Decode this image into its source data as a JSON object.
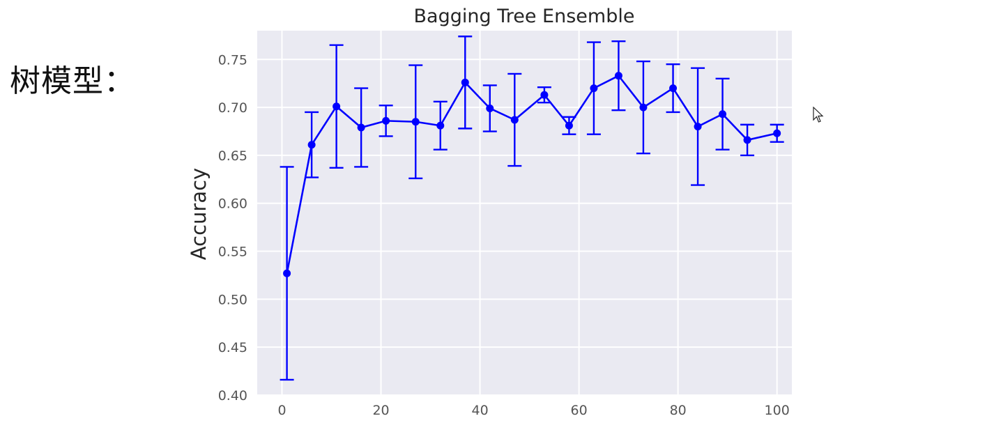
{
  "slide": {
    "heading": "树模型："
  },
  "chart_data": {
    "type": "line",
    "title": "Bagging Tree Ensemble",
    "xlabel": "",
    "ylabel": "Accuracy",
    "xlim": [
      -5,
      103
    ],
    "ylim": [
      0.4,
      0.78
    ],
    "xticks": [
      0,
      20,
      40,
      60,
      80,
      100
    ],
    "yticks": [
      0.4,
      0.45,
      0.5,
      0.55,
      0.6,
      0.65,
      0.7,
      0.75
    ],
    "xtick_labels": [
      "0",
      "20",
      "40",
      "60",
      "80",
      "100"
    ],
    "ytick_labels": [
      "0.40",
      "0.45",
      "0.50",
      "0.55",
      "0.60",
      "0.65",
      "0.70",
      "0.75"
    ],
    "grid": true,
    "colors": {
      "series": "#0000ff",
      "background": "#eaeaf2",
      "grid": "#ffffff"
    },
    "series": [
      {
        "marker": "circle",
        "x": [
          1,
          6,
          11,
          16,
          21,
          27,
          32,
          37,
          42,
          47,
          53,
          58,
          63,
          68,
          73,
          79,
          84,
          89,
          94,
          100
        ],
        "y": [
          0.527,
          0.661,
          0.701,
          0.679,
          0.686,
          0.685,
          0.681,
          0.726,
          0.699,
          0.687,
          0.713,
          0.681,
          0.72,
          0.733,
          0.7,
          0.72,
          0.68,
          0.693,
          0.666,
          0.673
        ],
        "error": [
          0.111,
          0.034,
          0.064,
          0.041,
          0.016,
          0.059,
          0.025,
          0.048,
          0.024,
          0.048,
          0.008,
          0.009,
          0.048,
          0.036,
          0.048,
          0.025,
          0.061,
          0.037,
          0.016,
          0.009
        ]
      }
    ]
  },
  "cursor": {
    "icon": "mouse-pointer-icon"
  }
}
